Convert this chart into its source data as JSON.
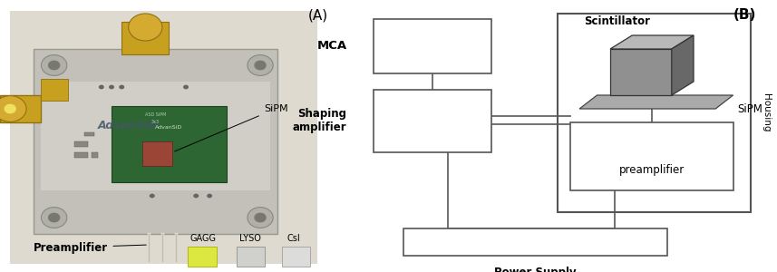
{
  "fig_width": 8.57,
  "fig_height": 3.0,
  "dpi": 100,
  "bg_color": "#ffffff",
  "label_A": "(A)",
  "label_B": "(B)",
  "labels": {
    "sipm_photo": "SiPM",
    "preamplifier_photo": "Preamplifier",
    "gagg": "GAGG",
    "lyso": "LYSO",
    "csi": "CsI",
    "mca": "MCA",
    "shaping": "Shaping\namplifier",
    "preamp": "preamplifier",
    "housing": "Housing",
    "scintillator": "Scintillator",
    "power": "Power Supply\n(DC)",
    "sipm_diag": "SiPM"
  },
  "colors": {
    "box_edge": "#555555",
    "box_fill": "#ffffff",
    "line": "#666666",
    "housing_edge": "#555555",
    "photo_bg": "#d8d5c8",
    "pcb_main": "#c0c0b8",
    "pcb_green": "#3a7040",
    "pcb_green2": "#2a5530",
    "sipm_comp": "#8a4030",
    "gold": "#c8a020",
    "gold_dark": "#a07810",
    "crystal_yellow": "#e0e840",
    "crystal_gray1": "#c8c8c4",
    "crystal_gray2": "#d8d8d4",
    "scint_front": "#909090",
    "scint_top": "#b8b8b8",
    "scint_right": "#686868",
    "plate_top": "#aaaaaa",
    "plate_edge": "#555555",
    "text_dark": "#111111",
    "text_label": "#1a1a1a"
  }
}
